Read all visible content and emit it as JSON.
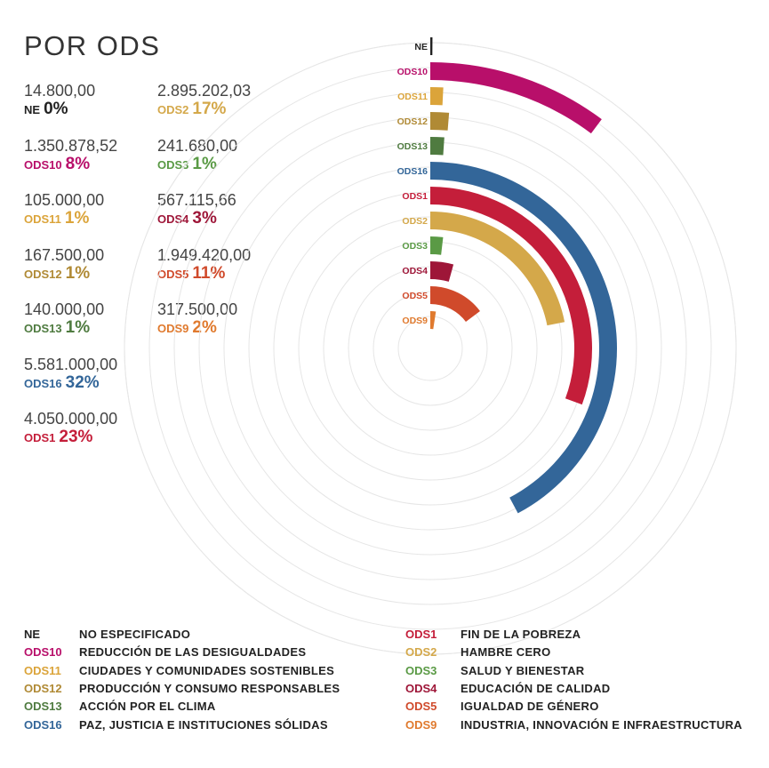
{
  "title": "POR ODS",
  "colors": {
    "NE": "#222222",
    "ODS10": "#b80f6a",
    "ODS11": "#dba43a",
    "ODS12": "#b08a35",
    "ODS13": "#4f7b40",
    "ODS16": "#336699",
    "ODS1": "#c41e3a",
    "ODS2": "#d4a84a",
    "ODS3": "#5a9a45",
    "ODS4": "#9e1638",
    "ODS5": "#d04a2b",
    "ODS9": "#e07a2e"
  },
  "stats": [
    {
      "code": "NE",
      "amount": "14.800,00",
      "pct": "0%"
    },
    {
      "code": "ODS10",
      "amount": "1.350.878,52",
      "pct": "8%"
    },
    {
      "code": "ODS11",
      "amount": "105.000,00",
      "pct": "1%"
    },
    {
      "code": "ODS12",
      "amount": "167.500,00",
      "pct": "1%"
    },
    {
      "code": "ODS13",
      "amount": "140.000,00",
      "pct": "1%"
    },
    {
      "code": "ODS16",
      "amount": "5.581.000,00",
      "pct": "32%"
    },
    {
      "code": "ODS1",
      "amount": "4.050.000,00",
      "pct": "23%"
    },
    {
      "code": "ODS2",
      "amount": "2.895.202,03",
      "pct": "17%"
    },
    {
      "code": "ODS3",
      "amount": "241.680,00",
      "pct": "1%"
    },
    {
      "code": "ODS4",
      "amount": "567.115,66",
      "pct": "3%"
    },
    {
      "code": "ODS5",
      "amount": "1.949.420,00",
      "pct": "11%"
    },
    {
      "code": "ODS9",
      "amount": "317.500,00",
      "pct": "2%"
    }
  ],
  "chart_data": {
    "type": "radial-bar",
    "categories": [
      "NE",
      "ODS10",
      "ODS11",
      "ODS12",
      "ODS13",
      "ODS16",
      "ODS1",
      "ODS2",
      "ODS3",
      "ODS4",
      "ODS5",
      "ODS9"
    ],
    "values": [
      14800.0,
      1350878.52,
      105000.0,
      167500.0,
      140000.0,
      5581000.0,
      4050000.0,
      2895202.03,
      241680.0,
      567115.66,
      1949420.0,
      317500.0
    ],
    "percent_labels": [
      "0%",
      "8%",
      "1%",
      "1%",
      "1%",
      "32%",
      "23%",
      "17%",
      "1%",
      "3%",
      "11%",
      "2%"
    ],
    "max_value": 5581000.0,
    "grid": true
  },
  "legend": {
    "left": [
      {
        "code": "NE",
        "name": "NO ESPECIFICADO"
      },
      {
        "code": "ODS10",
        "name": "REDUCCIÓN DE LAS DESIGUALDADES"
      },
      {
        "code": "ODS11",
        "name": "CIUDADES Y COMUNIDADES SOSTENIBLES"
      },
      {
        "code": "ODS12",
        "name": "PRODUCCIÓN Y CONSUMO RESPONSABLES"
      },
      {
        "code": "ODS13",
        "name": "ACCIÓN POR EL CLIMA"
      },
      {
        "code": "ODS16",
        "name": "PAZ, JUSTICIA E INSTITUCIONES SÓLIDAS"
      }
    ],
    "right": [
      {
        "code": "ODS1",
        "name": "FIN DE LA POBREZA"
      },
      {
        "code": "ODS2",
        "name": "HAMBRE CERO"
      },
      {
        "code": "ODS3",
        "name": "SALUD Y BIENESTAR"
      },
      {
        "code": "ODS4",
        "name": "EDUCACIÓN DE CALIDAD"
      },
      {
        "code": "ODS5",
        "name": "IGUALDAD DE GÉNERO"
      },
      {
        "code": "ODS9",
        "name": "INDUSTRIA, INNOVACIÓN E INFRAESTRUCTURA"
      }
    ]
  }
}
